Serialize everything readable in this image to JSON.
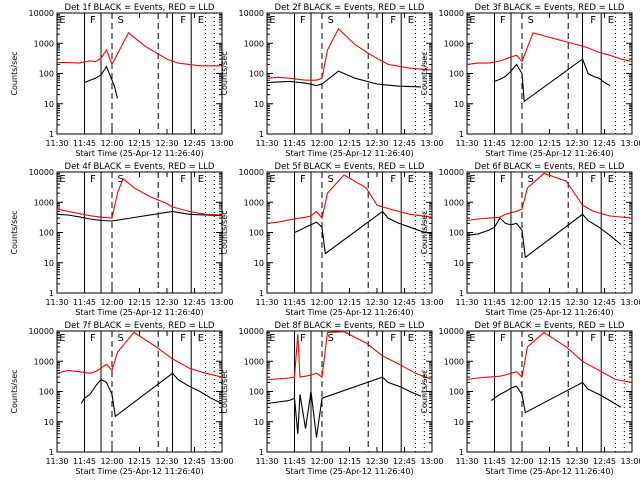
{
  "chart_data": [
    {
      "type": "line",
      "title": "Det 1f BLACK = Events, RED = LLD",
      "xlabel": "Start Time (25-Apr-12 11:26:40)",
      "ylabel": "Counts/sec",
      "yscale": "log",
      "ylim": [
        1,
        10000
      ],
      "xlim": [
        "11:30",
        "13:00"
      ],
      "xticks": [
        "11:30",
        "11:45",
        "12:00",
        "12:15",
        "12:30",
        "12:45",
        "13:00"
      ],
      "yticks": [
        "1",
        "10",
        "100",
        "1000",
        "10000"
      ],
      "markers": [
        "E",
        "F",
        "S",
        "F",
        "E"
      ],
      "series": [
        {
          "name": "Events",
          "color": "#000000",
          "x": [
            11.75,
            11.8,
            11.85,
            11.9,
            11.95,
            12.0,
            12.02,
            12.05
          ],
          "y": [
            50,
            60,
            70,
            90,
            170,
            60,
            40,
            15
          ]
        },
        {
          "name": "LLD",
          "color": "#ff0000",
          "x": [
            11.5,
            11.6,
            11.7,
            11.8,
            11.85,
            11.9,
            11.95,
            12.0,
            12.15,
            12.3,
            12.5,
            12.6,
            12.7,
            12.8,
            13.0
          ],
          "y": [
            230,
            230,
            220,
            260,
            250,
            320,
            600,
            200,
            2200,
            800,
            300,
            220,
            200,
            180,
            180
          ]
        }
      ]
    },
    {
      "type": "line",
      "title": "Det 2f BLACK = Events, RED = LLD",
      "xlabel": "Start Time (25-Apr-12 11:26:40)",
      "ylabel": "Counts/sec",
      "yscale": "log",
      "ylim": [
        1,
        10000
      ],
      "xlim": [
        "11:30",
        "13:00"
      ],
      "xticks": [
        "11:30",
        "11:45",
        "12:00",
        "12:15",
        "12:30",
        "12:45",
        "13:00"
      ],
      "yticks": [
        "1",
        "10",
        "100",
        "1000",
        "10000"
      ],
      "markers": [
        "E",
        "F",
        "S",
        "F",
        "E"
      ],
      "series": [
        {
          "name": "Events",
          "color": "#000000",
          "x": [
            11.5,
            11.7,
            11.85,
            11.95,
            12.0,
            12.15,
            12.3,
            12.5,
            12.7,
            12.9
          ],
          "y": [
            50,
            55,
            48,
            40,
            45,
            120,
            70,
            45,
            38,
            36
          ]
        },
        {
          "name": "LLD",
          "color": "#ff0000",
          "x": [
            11.5,
            11.6,
            11.7,
            11.85,
            11.95,
            12.0,
            12.05,
            12.15,
            12.3,
            12.45,
            12.6,
            12.8,
            13.0
          ],
          "y": [
            70,
            75,
            70,
            60,
            60,
            70,
            600,
            3000,
            900,
            400,
            200,
            150,
            130
          ]
        }
      ]
    },
    {
      "type": "line",
      "title": "Det 3f BLACK = Events, RED = LLD",
      "xlabel": "Start Time (25-Apr-12 11:26:40)",
      "ylabel": "Counts/sec",
      "yscale": "log",
      "ylim": [
        1,
        10000
      ],
      "xlim": [
        "11:30",
        "13:00"
      ],
      "xticks": [
        "11:30",
        "11:45",
        "12:00",
        "12:15",
        "12:30",
        "12:45",
        "13:00"
      ],
      "yticks": [
        "1",
        "10",
        "100",
        "1000",
        "10000"
      ],
      "markers": [
        "E",
        "F",
        "S",
        "F",
        "E"
      ],
      "series": [
        {
          "name": "Events",
          "color": "#000000",
          "x": [
            11.75,
            11.8,
            11.85,
            11.9,
            11.95,
            12.0,
            12.02,
            12.55,
            12.58,
            12.6,
            12.65,
            12.7,
            12.75,
            12.8
          ],
          "y": [
            55,
            65,
            80,
            120,
            200,
            100,
            12,
            300,
            160,
            100,
            80,
            70,
            50,
            40
          ]
        },
        {
          "name": "LLD",
          "color": "#ff0000",
          "x": [
            11.5,
            11.6,
            11.7,
            11.8,
            11.85,
            11.9,
            11.95,
            12.0,
            12.1,
            12.3,
            12.5,
            12.55,
            12.6,
            12.7,
            12.8,
            12.9,
            13.0
          ],
          "y": [
            200,
            220,
            220,
            260,
            300,
            350,
            400,
            250,
            2200,
            1400,
            900,
            800,
            700,
            500,
            400,
            300,
            250
          ]
        }
      ]
    },
    {
      "type": "line",
      "title": "Det 4f BLACK = Events, RED = LLD",
      "xlabel": "Start Time (25-Apr-12 11:26:40)",
      "ylabel": "Counts/sec",
      "yscale": "log",
      "ylim": [
        1,
        10000
      ],
      "xlim": [
        "11:30",
        "13:00"
      ],
      "xticks": [
        "11:30",
        "11:45",
        "12:00",
        "12:15",
        "12:30",
        "12:45",
        "13:00"
      ],
      "yticks": [
        "1",
        "10",
        "100",
        "1000",
        "10000"
      ],
      "markers": [
        "E",
        "F",
        "S",
        "F",
        "E"
      ],
      "series": [
        {
          "name": "Events",
          "color": "#000000",
          "x": [
            11.5,
            11.6,
            11.7,
            11.8,
            11.9,
            12.0,
            12.55,
            12.7,
            12.85,
            13.0
          ],
          "y": [
            400,
            380,
            330,
            280,
            250,
            240,
            500,
            400,
            380,
            360
          ]
        },
        {
          "name": "LLD",
          "color": "#ff0000",
          "x": [
            11.5,
            11.6,
            11.7,
            11.8,
            11.9,
            12.0,
            12.05,
            12.1,
            12.2,
            12.35,
            12.5,
            12.55,
            12.7,
            12.85,
            13.0
          ],
          "y": [
            600,
            500,
            420,
            360,
            320,
            300,
            2000,
            6000,
            3000,
            1500,
            900,
            700,
            500,
            400,
            380
          ]
        }
      ]
    },
    {
      "type": "line",
      "title": "Det 5f BLACK = Events, RED = LLD",
      "xlabel": "Start Time (25-Apr-12 11:26:40)",
      "ylabel": "Counts/sec",
      "yscale": "log",
      "ylim": [
        1,
        10000
      ],
      "xlim": [
        "11:30",
        "13:00"
      ],
      "xticks": [
        "11:30",
        "11:45",
        "12:00",
        "12:15",
        "12:30",
        "12:45",
        "13:00"
      ],
      "yticks": [
        "1",
        "10",
        "100",
        "1000",
        "10000"
      ],
      "markers": [
        "E",
        "F",
        "S",
        "F",
        "E"
      ],
      "series": [
        {
          "name": "Events",
          "color": "#000000",
          "x": [
            11.75,
            11.8,
            11.85,
            11.9,
            11.95,
            12.0,
            12.03,
            12.55,
            12.6,
            12.7,
            12.8,
            12.9,
            13.0
          ],
          "y": [
            100,
            120,
            150,
            180,
            220,
            150,
            20,
            500,
            300,
            200,
            150,
            110,
            90
          ]
        },
        {
          "name": "LLD",
          "color": "#ff0000",
          "x": [
            11.5,
            11.6,
            11.7,
            11.8,
            11.85,
            11.9,
            11.95,
            12.0,
            12.05,
            12.2,
            12.4,
            12.5,
            12.55,
            12.65,
            12.8,
            13.0
          ],
          "y": [
            200,
            220,
            260,
            300,
            320,
            350,
            500,
            300,
            2000,
            8000,
            3000,
            800,
            700,
            550,
            400,
            320
          ]
        }
      ]
    },
    {
      "type": "line",
      "title": "Det 6f BLACK = Events, RED = LLD",
      "xlabel": "Start Time (25-Apr-12 11:26:40)",
      "ylabel": "Counts/sec",
      "yscale": "log",
      "ylim": [
        1,
        10000
      ],
      "xlim": [
        "11:30",
        "13:00"
      ],
      "xticks": [
        "11:30",
        "11:45",
        "12:00",
        "12:15",
        "12:30",
        "12:45",
        "13:00"
      ],
      "yticks": [
        "1",
        "10",
        "100",
        "1000",
        "10000"
      ],
      "markers": [
        "E",
        "F",
        "S",
        "F",
        "E"
      ],
      "series": [
        {
          "name": "Events",
          "color": "#000000",
          "x": [
            11.5,
            11.6,
            11.7,
            11.75,
            11.8,
            11.85,
            11.9,
            11.95,
            12.0,
            12.03,
            12.55,
            12.6,
            12.7,
            12.8,
            12.9
          ],
          "y": [
            80,
            90,
            120,
            150,
            300,
            200,
            180,
            200,
            120,
            15,
            400,
            250,
            150,
            80,
            40
          ]
        },
        {
          "name": "LLD",
          "color": "#ff0000",
          "x": [
            11.5,
            11.6,
            11.7,
            11.8,
            11.85,
            11.9,
            11.95,
            12.0,
            12.05,
            12.2,
            12.4,
            12.5,
            12.55,
            12.65,
            12.8,
            13.0
          ],
          "y": [
            250,
            280,
            300,
            320,
            400,
            450,
            500,
            600,
            3000,
            9000,
            5000,
            1500,
            800,
            500,
            350,
            300
          ]
        }
      ]
    },
    {
      "type": "line",
      "title": "Det 7f BLACK = Events, RED = LLD",
      "xlabel": "Start Time (25-Apr-12 11:26:40)",
      "ylabel": "Counts/sec",
      "yscale": "log",
      "ylim": [
        1,
        10000
      ],
      "xlim": [
        "11:30",
        "13:00"
      ],
      "xticks": [
        "11:30",
        "11:45",
        "12:00",
        "12:15",
        "12:30",
        "12:45",
        "13:00"
      ],
      "yticks": [
        "1",
        "10",
        "100",
        "1000",
        "10000"
      ],
      "markers": [
        "E",
        "F",
        "S",
        "F",
        "E"
      ],
      "series": [
        {
          "name": "Events",
          "color": "#000000",
          "x": [
            11.72,
            11.75,
            11.8,
            11.85,
            11.9,
            11.95,
            12.0,
            12.03,
            12.55,
            12.6,
            12.7,
            12.8,
            12.9,
            13.0
          ],
          "y": [
            40,
            60,
            80,
            150,
            250,
            200,
            80,
            15,
            400,
            250,
            150,
            100,
            60,
            40
          ]
        },
        {
          "name": "LLD",
          "color": "#ff0000",
          "x": [
            11.5,
            11.55,
            11.6,
            11.7,
            11.8,
            11.85,
            11.9,
            11.95,
            12.0,
            12.05,
            12.2,
            12.4,
            12.55,
            12.7,
            12.85,
            13.0
          ],
          "y": [
            400,
            450,
            500,
            450,
            400,
            450,
            600,
            800,
            500,
            2000,
            9000,
            3000,
            1200,
            600,
            400,
            300
          ]
        }
      ]
    },
    {
      "type": "line",
      "title": "Det 8f BLACK = Events, RED = LLD",
      "xlabel": "Start Time (25-Apr-12 11:26:40)",
      "ylabel": "Counts/sec",
      "yscale": "log",
      "ylim": [
        1,
        10000
      ],
      "xlim": [
        "11:30",
        "13:00"
      ],
      "xticks": [
        "11:30",
        "11:45",
        "12:00",
        "12:15",
        "12:30",
        "12:45",
        "13:00"
      ],
      "yticks": [
        "1",
        "10",
        "100",
        "1000",
        "10000"
      ],
      "markers": [
        "E",
        "F",
        "S",
        "F",
        "E"
      ],
      "series": [
        {
          "name": "Events",
          "color": "#000000",
          "x": [
            11.5,
            11.6,
            11.7,
            11.75,
            11.78,
            11.8,
            11.85,
            11.9,
            11.95,
            12.0,
            12.55,
            12.6,
            12.7,
            12.8,
            12.9
          ],
          "y": [
            40,
            45,
            50,
            60,
            4,
            80,
            6,
            100,
            3,
            60,
            300,
            200,
            150,
            100,
            70
          ]
        },
        {
          "name": "LLD",
          "color": "#ff0000",
          "x": [
            11.5,
            11.6,
            11.7,
            11.75,
            11.78,
            11.8,
            11.85,
            11.9,
            11.95,
            12.0,
            12.05,
            12.2,
            12.4,
            12.55,
            12.7,
            12.85,
            13.0
          ],
          "y": [
            250,
            260,
            280,
            300,
            8000,
            300,
            320,
            350,
            400,
            300,
            9000,
            9500,
            4000,
            1500,
            800,
            400,
            250
          ]
        }
      ]
    },
    {
      "type": "line",
      "title": "Det 9f BLACK = Events, RED = LLD",
      "xlabel": "Start Time (25-Apr-12 11:26:40)",
      "ylabel": "Counts/sec",
      "yscale": "log",
      "ylim": [
        1,
        10000
      ],
      "xlim": [
        "11:30",
        "13:00"
      ],
      "xticks": [
        "11:30",
        "11:45",
        "12:00",
        "12:15",
        "12:30",
        "12:45",
        "13:00"
      ],
      "yticks": [
        "1",
        "10",
        "100",
        "1000",
        "10000"
      ],
      "markers": [
        "E",
        "F",
        "S",
        "F",
        "E"
      ],
      "series": [
        {
          "name": "Events",
          "color": "#000000",
          "x": [
            11.72,
            11.75,
            11.8,
            11.85,
            11.9,
            11.95,
            12.0,
            12.03,
            12.55,
            12.6,
            12.7,
            12.8,
            12.9
          ],
          "y": [
            50,
            60,
            80,
            100,
            130,
            150,
            80,
            20,
            200,
            120,
            80,
            50,
            30
          ]
        },
        {
          "name": "LLD",
          "color": "#ff0000",
          "x": [
            11.5,
            11.6,
            11.7,
            11.8,
            11.85,
            11.9,
            11.95,
            12.0,
            12.05,
            12.2,
            12.4,
            12.55,
            12.7,
            12.85,
            13.0
          ],
          "y": [
            250,
            280,
            300,
            320,
            350,
            400,
            450,
            300,
            3000,
            9000,
            3000,
            1000,
            500,
            250,
            200
          ]
        }
      ]
    }
  ]
}
